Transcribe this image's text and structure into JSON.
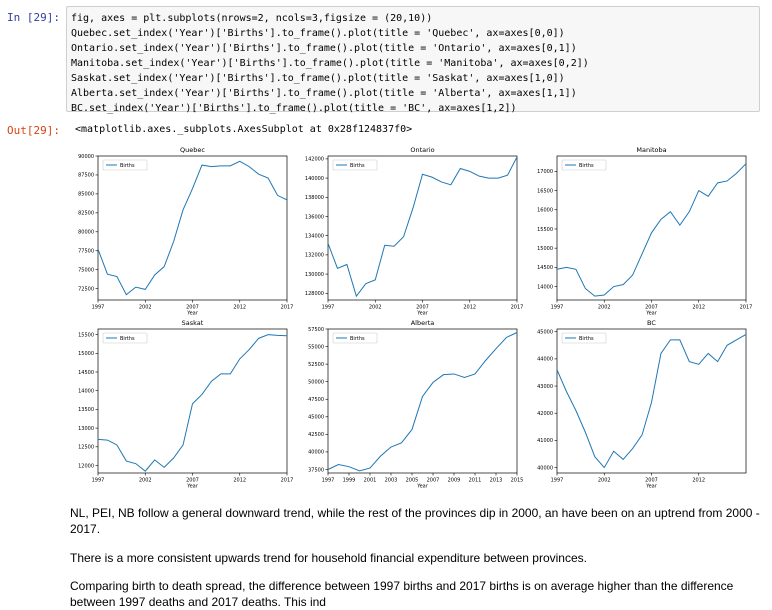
{
  "input_prompt": "In [29]:",
  "output_prompt": "Out[29]:",
  "code_lines": [
    "fig, axes = plt.subplots(nrows=2, ncols=3,figsize = (20,10))",
    "Quebec.set_index('Year')['Births'].to_frame().plot(title = 'Quebec', ax=axes[0,0])",
    "Ontario.set_index('Year')['Births'].to_frame().plot(title = 'Ontario', ax=axes[0,1])",
    "Manitoba.set_index('Year')['Births'].to_frame().plot(title = 'Manitoba', ax=axes[0,2])",
    "Saskat.set_index('Year')['Births'].to_frame().plot(title = 'Saskat', ax=axes[1,0])",
    "Alberta.set_index('Year')['Births'].to_frame().plot(title = 'Alberta', ax=axes[1,1])",
    "BC.set_index('Year')['Births'].to_frame().plot(title = 'BC', ax=axes[1,2])"
  ],
  "output_text": "<matplotlib.axes._subplots.AxesSubplot at 0x28f124837f0>",
  "markdown": [
    "NL, PEI, NB follow a general downward trend, while the rest of the provinces dip in 2000, an have been on an uptrend from 2000 - 2017.",
    "There is a more consistent upwards trend for household financial expenditure between provinces.",
    "Comparing birth to death spread, the difference between 1997 births and 2017 births is on average higher than the difference between 1997 deaths and 2017 deaths. This ind"
  ],
  "colors": {
    "line": "#1f77b4",
    "axis": "#000000"
  },
  "chart_data": [
    {
      "type": "line",
      "title": "Quebec",
      "xlabel": "Year",
      "ylabel": "",
      "legend": [
        "Births"
      ],
      "legend_position": "upper-left",
      "xlim": [
        1997,
        2017
      ],
      "ylim": [
        71000,
        90000
      ],
      "xticks": [
        1997,
        2002,
        2007,
        2012,
        2017
      ],
      "yticks": [
        72500,
        75000,
        77500,
        80000,
        82500,
        85000,
        87500,
        90000
      ],
      "x": [
        1997,
        1998,
        1999,
        2000,
        2001,
        2002,
        2003,
        2004,
        2005,
        2006,
        2007,
        2008,
        2009,
        2010,
        2011,
        2012,
        2013,
        2014,
        2015,
        2016,
        2017
      ],
      "series": [
        {
          "name": "Births",
          "values": [
            77700,
            74400,
            74100,
            71700,
            72700,
            72400,
            74300,
            75400,
            78700,
            82900,
            85700,
            88800,
            88600,
            88700,
            88700,
            89300,
            88600,
            87600,
            87100,
            84800,
            84200
          ]
        }
      ]
    },
    {
      "type": "line",
      "title": "Ontario",
      "xlabel": "Year",
      "ylabel": "",
      "legend": [
        "Births"
      ],
      "legend_position": "upper-left",
      "xlim": [
        1997,
        2017
      ],
      "ylim": [
        127300,
        142300
      ],
      "xticks": [
        1997,
        2002,
        2007,
        2012,
        2017
      ],
      "yticks": [
        128000,
        130000,
        132000,
        134000,
        136000,
        138000,
        140000,
        142000
      ],
      "x": [
        1997,
        1998,
        1999,
        2000,
        2001,
        2002,
        2003,
        2004,
        2005,
        2006,
        2007,
        2008,
        2009,
        2010,
        2011,
        2012,
        2013,
        2014,
        2015,
        2016,
        2017
      ],
      "series": [
        {
          "name": "Births",
          "values": [
            133200,
            130600,
            131000,
            127700,
            129000,
            129400,
            133000,
            132900,
            133900,
            136900,
            140400,
            140100,
            139600,
            139300,
            141000,
            140700,
            140200,
            140000,
            140000,
            140300,
            142200
          ]
        }
      ]
    },
    {
      "type": "line",
      "title": "Manitoba",
      "xlabel": "Year",
      "ylabel": "",
      "legend": [
        "Births"
      ],
      "legend_position": "upper-left",
      "xlim": [
        1997,
        2017
      ],
      "ylim": [
        13650,
        17400
      ],
      "xticks": [
        1997,
        2002,
        2007,
        2012,
        2017
      ],
      "yticks": [
        14000,
        14500,
        15000,
        15500,
        16000,
        16500,
        17000
      ],
      "x": [
        1997,
        1998,
        1999,
        2000,
        2001,
        2002,
        2003,
        2004,
        2005,
        2006,
        2007,
        2008,
        2009,
        2010,
        2011,
        2012,
        2013,
        2014,
        2015,
        2016,
        2017
      ],
      "series": [
        {
          "name": "Births",
          "values": [
            14450,
            14500,
            14450,
            13950,
            13750,
            13780,
            14000,
            14050,
            14300,
            14850,
            15400,
            15750,
            15950,
            15600,
            15950,
            16500,
            16350,
            16700,
            16750,
            16950,
            17200
          ]
        }
      ]
    },
    {
      "type": "line",
      "title": "Saskat",
      "xlabel": "Year",
      "ylabel": "",
      "legend": [
        "Births"
      ],
      "legend_position": "upper-left",
      "xlim": [
        1997,
        2017
      ],
      "ylim": [
        11800,
        15650
      ],
      "xticks": [
        1997,
        2002,
        2007,
        2012,
        2017
      ],
      "yticks": [
        12000,
        12500,
        13000,
        13500,
        14000,
        14500,
        15000,
        15500
      ],
      "x": [
        1997,
        1998,
        1999,
        2000,
        2001,
        2002,
        2003,
        2004,
        2005,
        2006,
        2007,
        2008,
        2009,
        2010,
        2011,
        2012,
        2013,
        2014,
        2015,
        2016,
        2017
      ],
      "series": [
        {
          "name": "Births",
          "values": [
            12700,
            12680,
            12550,
            12120,
            12050,
            11850,
            12150,
            11950,
            12200,
            12550,
            13650,
            13900,
            14250,
            14450,
            14450,
            14850,
            15100,
            15400,
            15500,
            15480,
            15470
          ]
        }
      ]
    },
    {
      "type": "line",
      "title": "Alberta",
      "xlabel": "Year",
      "ylabel": "",
      "legend": [
        "Births"
      ],
      "legend_position": "upper-left",
      "xlim": [
        1997,
        2015
      ],
      "ylim": [
        37000,
        57500
      ],
      "xticks": [
        1997,
        1999,
        2001,
        2003,
        2005,
        2007,
        2009,
        2011,
        2013,
        2015
      ],
      "yticks": [
        37500,
        40000,
        42500,
        45000,
        47500,
        50000,
        52500,
        55000,
        57500
      ],
      "x": [
        1997,
        1998,
        1999,
        2000,
        2001,
        2002,
        2003,
        2004,
        2005,
        2006,
        2007,
        2008,
        2009,
        2010,
        2011,
        2012,
        2013,
        2014,
        2015
      ],
      "series": [
        {
          "name": "Births",
          "values": [
            37500,
            38200,
            37900,
            37300,
            37700,
            39400,
            40700,
            41300,
            43200,
            47900,
            49900,
            51000,
            51100,
            50600,
            51100,
            53000,
            54700,
            56300,
            57000
          ]
        }
      ]
    },
    {
      "type": "line",
      "title": "BC",
      "xlabel": "Year",
      "ylabel": "",
      "legend": [
        "Births"
      ],
      "legend_position": "upper-left",
      "xlim": [
        1997,
        2017
      ],
      "ylim": [
        39800,
        45100
      ],
      "xticks": [
        1997,
        2002,
        2007,
        2012
      ],
      "yticks": [
        40000,
        41000,
        42000,
        43000,
        44000,
        45000
      ],
      "x": [
        1997,
        1998,
        1999,
        2000,
        2001,
        2002,
        2003,
        2004,
        2005,
        2006,
        2007,
        2008,
        2009,
        2010,
        2011,
        2012,
        2013,
        2014,
        2015,
        2016,
        2017
      ],
      "series": [
        {
          "name": "Births",
          "values": [
            43600,
            42800,
            42100,
            41300,
            40400,
            40000,
            40600,
            40300,
            40700,
            41200,
            42400,
            44200,
            44700,
            44700,
            43900,
            43800,
            44200,
            43900,
            44500,
            44700,
            44900
          ]
        }
      ]
    }
  ]
}
